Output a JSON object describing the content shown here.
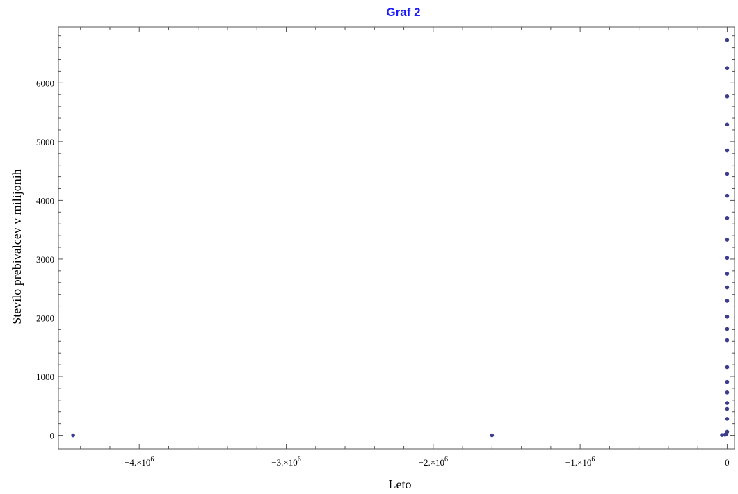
{
  "chart_data": {
    "type": "scatter",
    "title": "Graf 2",
    "xlabel": "Leto",
    "ylabel": "Stevilo prebivalcev v milijonih",
    "xlim": [
      -4550000,
      50000
    ],
    "ylim": [
      -230,
      6950
    ],
    "x_ticks": [
      {
        "value": -4000000,
        "mantissa": "−4.×10",
        "exp": "6"
      },
      {
        "value": -3000000,
        "mantissa": "−3.×10",
        "exp": "6"
      },
      {
        "value": -2000000,
        "mantissa": "−2.×10",
        "exp": "6"
      },
      {
        "value": -1000000,
        "mantissa": "−1.×10",
        "exp": "6"
      },
      {
        "value": 0,
        "mantissa": "0",
        "exp": ""
      }
    ],
    "y_ticks": [
      {
        "value": 0,
        "label": "0"
      },
      {
        "value": 1000,
        "label": "1000"
      },
      {
        "value": 2000,
        "label": "2000"
      },
      {
        "value": 3000,
        "label": "3000"
      },
      {
        "value": 4000,
        "label": "4000"
      },
      {
        "value": 5000,
        "label": "5000"
      },
      {
        "value": 6000,
        "label": "6000"
      }
    ],
    "points": [
      {
        "x": -4450000,
        "y": 0
      },
      {
        "x": -1600000,
        "y": 0
      },
      {
        "x": -35000,
        "y": 5
      },
      {
        "x": -15000,
        "y": 10
      },
      {
        "x": -5000,
        "y": 20
      },
      {
        "x": 0,
        "y": 60
      },
      {
        "x": 0,
        "y": 280
      },
      {
        "x": 0,
        "y": 450
      },
      {
        "x": 0,
        "y": 550
      },
      {
        "x": 0,
        "y": 730
      },
      {
        "x": 0,
        "y": 910
      },
      {
        "x": 0,
        "y": 1160
      },
      {
        "x": 0,
        "y": 1620
      },
      {
        "x": 0,
        "y": 1810
      },
      {
        "x": 0,
        "y": 2020
      },
      {
        "x": 0,
        "y": 2290
      },
      {
        "x": 0,
        "y": 2520
      },
      {
        "x": 0,
        "y": 2750
      },
      {
        "x": 0,
        "y": 3020
      },
      {
        "x": 0,
        "y": 3330
      },
      {
        "x": 0,
        "y": 3700
      },
      {
        "x": 0,
        "y": 4080
      },
      {
        "x": 0,
        "y": 4450
      },
      {
        "x": 0,
        "y": 4850
      },
      {
        "x": 0,
        "y": 5290
      },
      {
        "x": 0,
        "y": 5770
      },
      {
        "x": 0,
        "y": 6250
      },
      {
        "x": 0,
        "y": 6730
      }
    ],
    "grid": false,
    "legend": "none"
  }
}
